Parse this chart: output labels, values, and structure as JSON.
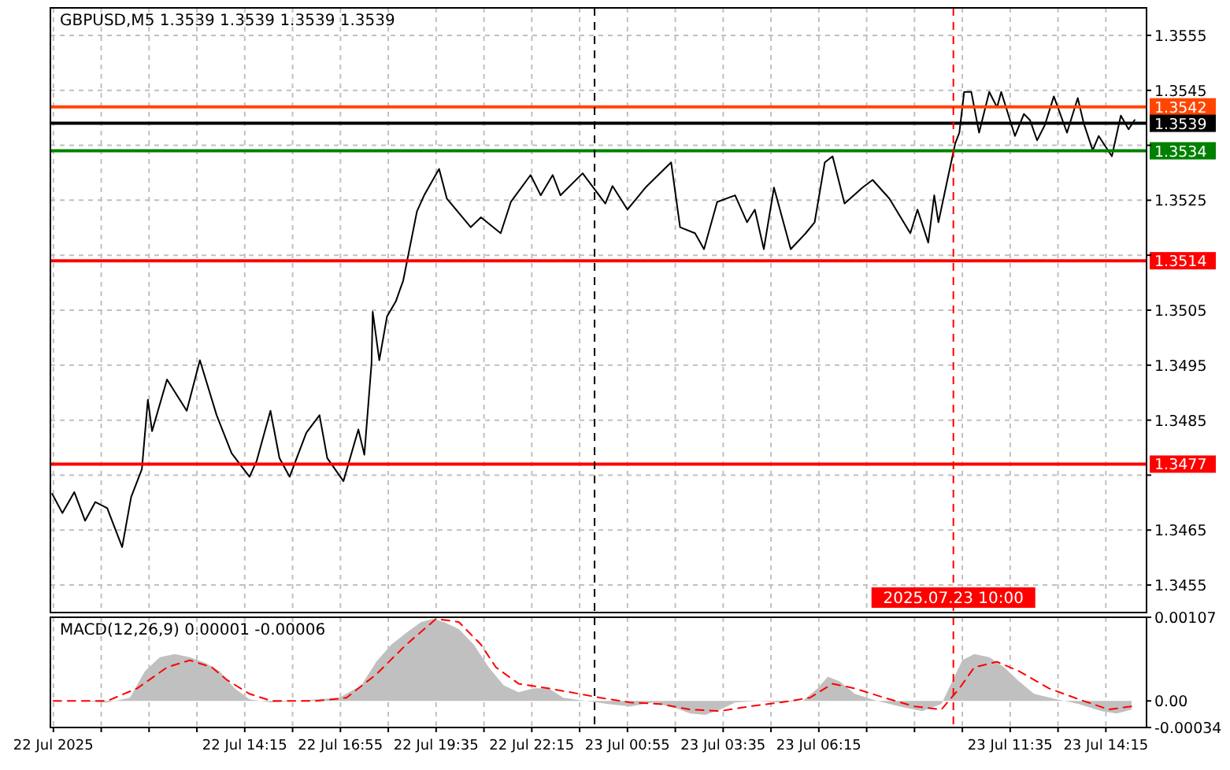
{
  "chart_data": [
    {
      "type": "line",
      "title": "GBPUSD,M5  1.3539 1.3539 1.3539 1.3539",
      "xlim": [
        "2025-07-22T08:50",
        "2025-07-23T15:23"
      ],
      "ylim": [
        1.345,
        1.356
      ],
      "xticks": [
        {
          "value": "2025-07-22T08:55",
          "label": null
        },
        {
          "value": "2025-07-22T10:15",
          "label": null
        },
        {
          "value": "2025-07-22T11:35",
          "label": null
        },
        {
          "value": "2025-07-22T12:55",
          "label": null
        },
        {
          "value": "2025-07-22T14:15",
          "label": null
        },
        {
          "value": "2025-07-22T15:35",
          "label": null
        },
        {
          "value": "2025-07-22T16:55",
          "label": null
        },
        {
          "value": "2025-07-22T18:15",
          "label": null
        },
        {
          "value": "2025-07-22T19:35",
          "label": null
        },
        {
          "value": "2025-07-22T20:55",
          "label": null
        },
        {
          "value": "2025-07-22T22:15",
          "label": null
        },
        {
          "value": "2025-07-22T23:35",
          "label": null
        },
        {
          "value": "2025-07-23T00:55",
          "label": null
        },
        {
          "value": "2025-07-23T02:15",
          "label": null
        },
        {
          "value": "2025-07-23T03:35",
          "label": null
        },
        {
          "value": "2025-07-23T04:55",
          "label": null
        },
        {
          "value": "2025-07-23T06:15",
          "label": null
        },
        {
          "value": "2025-07-23T07:35",
          "label": null
        },
        {
          "value": "2025-07-23T08:55",
          "label": null
        },
        {
          "value": "2025-07-23T10:15",
          "label": null
        },
        {
          "value": "2025-07-23T11:35",
          "label": null
        },
        {
          "value": "2025-07-23T12:55",
          "label": null
        },
        {
          "value": "2025-07-23T14:15",
          "label": null
        }
      ],
      "yticks": [
        1.3455,
        1.3465,
        {
          "value": 1.3475,
          "label": null
        },
        1.3485,
        1.3495,
        1.3505,
        {
          "value": 1.3515,
          "label": null
        },
        1.3525,
        {
          "value": 1.3535,
          "label": null
        },
        1.3545,
        1.3555
      ],
      "tick_labels": "y",
      "grid": true,
      "marker": "none",
      "ref_lines": [
        {
          "axis": "y",
          "value": 1.3542,
          "label": "1.3542",
          "color": "#ff4500"
        },
        {
          "axis": "y",
          "value": 1.3539,
          "label": "1.3539",
          "color": "#000000"
        },
        {
          "axis": "y",
          "value": 1.3534,
          "label": "1.3534",
          "color": "#008000"
        },
        {
          "axis": "y",
          "value": 1.3514,
          "label": "1.3514",
          "color": "#ff0000"
        },
        {
          "axis": "y",
          "value": 1.3477,
          "label": "1.3477",
          "color": "#ff0000"
        },
        {
          "axis": "x",
          "value": "2025-07-23T00:00",
          "label": null,
          "color": "#000000",
          "line_style": "dashed"
        },
        {
          "axis": "x",
          "value": "2025-07-23T10:00",
          "label": "2025.07.23 10:00",
          "color": "#ff0000",
          "line_style": "dashed"
        }
      ],
      "series": [
        {
          "color": "#000000",
          "x": [
            "2025-07-22T08:53",
            "2025-07-22T09:10",
            "2025-07-22T09:30",
            "2025-07-22T09:48",
            "2025-07-22T10:05",
            "2025-07-22T10:25",
            "2025-07-22T10:50",
            "2025-07-22T11:05",
            "2025-07-22T11:23",
            "2025-07-22T11:33",
            "2025-07-22T11:40",
            "2025-07-22T12:05",
            "2025-07-22T12:38",
            "2025-07-22T13:00",
            "2025-07-22T13:28",
            "2025-07-22T13:53",
            "2025-07-22T14:23",
            "2025-07-22T14:35",
            "2025-07-22T14:58",
            "2025-07-22T15:13",
            "2025-07-22T15:30",
            "2025-07-22T15:58",
            "2025-07-22T16:20",
            "2025-07-22T16:33",
            "2025-07-22T17:00",
            "2025-07-22T17:25",
            "2025-07-22T17:35",
            "2025-07-22T17:47",
            "2025-07-22T17:49",
            "2025-07-22T18:00",
            "2025-07-22T18:13",
            "2025-07-22T18:28",
            "2025-07-22T18:40",
            "2025-07-22T19:03",
            "2025-07-22T19:15",
            "2025-07-22T19:40",
            "2025-07-22T19:53",
            "2025-07-22T20:33",
            "2025-07-22T20:50",
            "2025-07-22T21:23",
            "2025-07-22T21:40",
            "2025-07-22T22:13",
            "2025-07-22T22:30",
            "2025-07-22T22:50",
            "2025-07-22T23:03",
            "2025-07-22T23:40",
            "2025-07-23T00:18",
            "2025-07-23T00:30",
            "2025-07-23T00:55",
            "2025-07-23T01:25",
            "2025-07-23T02:08",
            "2025-07-23T02:23",
            "2025-07-23T02:48",
            "2025-07-23T03:03",
            "2025-07-23T03:25",
            "2025-07-23T03:55",
            "2025-07-23T04:15",
            "2025-07-23T04:28",
            "2025-07-23T04:43",
            "2025-07-23T05:00",
            "2025-07-23T05:28",
            "2025-07-23T05:53",
            "2025-07-23T06:08",
            "2025-07-23T06:25",
            "2025-07-23T06:38",
            "2025-07-23T06:58",
            "2025-07-23T07:28",
            "2025-07-23T07:45",
            "2025-07-23T08:13",
            "2025-07-23T08:48",
            "2025-07-23T09:00",
            "2025-07-23T09:18",
            "2025-07-23T09:28",
            "2025-07-23T09:35",
            "2025-07-23T09:50",
            "2025-07-23T10:03",
            "2025-07-23T10:10",
            "2025-07-23T10:18",
            "2025-07-23T10:30",
            "2025-07-23T10:43",
            "2025-07-23T11:00",
            "2025-07-23T11:13",
            "2025-07-23T11:20",
            "2025-07-23T11:43",
            "2025-07-23T11:58",
            "2025-07-23T12:08",
            "2025-07-23T12:20",
            "2025-07-23T12:33",
            "2025-07-23T12:48",
            "2025-07-23T13:10",
            "2025-07-23T13:28",
            "2025-07-23T13:38",
            "2025-07-23T13:53",
            "2025-07-23T14:03",
            "2025-07-23T14:25",
            "2025-07-23T14:40",
            "2025-07-23T14:53",
            "2025-07-23T15:03"
          ],
          "values": [
            1.34716,
            1.34681,
            1.34719,
            1.34667,
            1.34701,
            1.3469,
            1.34619,
            1.3471,
            1.34761,
            1.34887,
            1.3483,
            1.34924,
            1.34867,
            1.34959,
            1.34859,
            1.3479,
            1.34747,
            1.34776,
            1.34867,
            1.34781,
            1.34747,
            1.34827,
            1.34859,
            1.34781,
            1.34739,
            1.34833,
            1.34787,
            1.34953,
            1.35047,
            1.34959,
            1.35039,
            1.35067,
            1.35104,
            1.3523,
            1.35259,
            1.35307,
            1.35253,
            1.35201,
            1.35219,
            1.3519,
            1.35247,
            1.35296,
            1.35259,
            1.35296,
            1.35259,
            1.35299,
            1.35244,
            1.35276,
            1.35233,
            1.35273,
            1.35319,
            1.35201,
            1.3519,
            1.35161,
            1.35247,
            1.35259,
            1.3521,
            1.35233,
            1.35161,
            1.35273,
            1.35161,
            1.3519,
            1.3521,
            1.35319,
            1.3533,
            1.35244,
            1.35273,
            1.35287,
            1.35253,
            1.3519,
            1.35233,
            1.35173,
            1.35259,
            1.3521,
            1.35287,
            1.35353,
            1.35373,
            1.35447,
            1.35447,
            1.35373,
            1.35447,
            1.35419,
            1.35447,
            1.35367,
            1.35407,
            1.35396,
            1.35359,
            1.35387,
            1.35439,
            1.35373,
            1.35436,
            1.3539,
            1.35341,
            1.35367,
            1.3533,
            1.35404,
            1.35379,
            1.35396
          ]
        }
      ]
    },
    {
      "type": "line",
      "title": "MACD(12,26,9) 0.00001 -0.00006",
      "xlim": [
        "2025-07-22T08:50",
        "2025-07-23T15:23"
      ],
      "ylim": [
        -0.00034,
        0.00107
      ],
      "xticks": [
        {
          "value": "2025-07-22T08:55",
          "label": "22 Jul 2025"
        },
        {
          "value": "2025-07-22T10:15",
          "label": null
        },
        {
          "value": "2025-07-22T11:35",
          "label": null
        },
        {
          "value": "2025-07-22T12:55",
          "label": null
        },
        {
          "value": "2025-07-22T14:15",
          "label": "22 Jul 14:15"
        },
        {
          "value": "2025-07-22T15:35",
          "label": null
        },
        {
          "value": "2025-07-22T16:55",
          "label": "22 Jul 16:55"
        },
        {
          "value": "2025-07-22T18:15",
          "label": null
        },
        {
          "value": "2025-07-22T19:35",
          "label": "22 Jul 19:35"
        },
        {
          "value": "2025-07-22T20:55",
          "label": null
        },
        {
          "value": "2025-07-22T22:15",
          "label": "22 Jul 22:15"
        },
        {
          "value": "2025-07-22T23:35",
          "label": null
        },
        {
          "value": "2025-07-23T00:55",
          "label": "23 Jul 00:55"
        },
        {
          "value": "2025-07-23T02:15",
          "label": null
        },
        {
          "value": "2025-07-23T03:35",
          "label": "23 Jul 03:35"
        },
        {
          "value": "2025-07-23T04:55",
          "label": null
        },
        {
          "value": "2025-07-23T06:15",
          "label": "23 Jul 06:15"
        },
        {
          "value": "2025-07-23T07:35",
          "label": null
        },
        {
          "value": "2025-07-23T08:55",
          "label": null
        },
        {
          "value": "2025-07-23T10:15",
          "label": null
        },
        {
          "value": "2025-07-23T11:35",
          "label": "23 Jul 11:35"
        },
        {
          "value": "2025-07-23T12:55",
          "label": null
        },
        {
          "value": "2025-07-23T14:15",
          "label": "23 Jul 14:15"
        }
      ],
      "yticks": [
        -0.00034,
        {
          "value": 0,
          "label": "0.00"
        },
        0.00107
      ],
      "grid": "x",
      "marker": "none",
      "ref_lines": [
        {
          "axis": "x",
          "value": "2025-07-23T00:00",
          "label": null,
          "color": "#000000",
          "line_style": "dashed"
        },
        {
          "axis": "x",
          "value": "2025-07-23T10:00",
          "label": null,
          "color": "#ff0000",
          "line_style": "dashed"
        }
      ],
      "series": [
        {
          "type": "area",
          "color": "#c0c0c0",
          "x": [
            "2025-07-22T08:55",
            "2025-07-22T09:35",
            "2025-07-22T10:25",
            "2025-07-22T11:03",
            "2025-07-22T11:28",
            "2025-07-22T11:53",
            "2025-07-22T12:18",
            "2025-07-22T12:43",
            "2025-07-22T13:08",
            "2025-07-22T13:33",
            "2025-07-22T13:58",
            "2025-07-22T14:23",
            "2025-07-22T15:00",
            "2025-07-22T15:38",
            "2025-07-22T16:15",
            "2025-07-22T16:53",
            "2025-07-22T17:30",
            "2025-07-22T17:55",
            "2025-07-22T18:20",
            "2025-07-22T18:45",
            "2025-07-22T19:10",
            "2025-07-22T19:30",
            "2025-07-22T19:48",
            "2025-07-22T20:13",
            "2025-07-22T20:38",
            "2025-07-22T21:03",
            "2025-07-22T21:28",
            "2025-07-22T21:53",
            "2025-07-22T22:18",
            "2025-07-22T22:43",
            "2025-07-22T23:08",
            "2025-07-22T23:45",
            "2025-07-23T00:23",
            "2025-07-23T01:00",
            "2025-07-23T01:38",
            "2025-07-23T02:15",
            "2025-07-23T02:40",
            "2025-07-23T03:05",
            "2025-07-23T03:30",
            "2025-07-23T03:55",
            "2025-07-23T04:33",
            "2025-07-23T05:10",
            "2025-07-23T05:48",
            "2025-07-23T06:13",
            "2025-07-23T06:30",
            "2025-07-23T06:50",
            "2025-07-23T07:15",
            "2025-07-23T07:53",
            "2025-07-23T08:30",
            "2025-07-23T09:08",
            "2025-07-23T09:40",
            "2025-07-23T09:58",
            "2025-07-23T10:15",
            "2025-07-23T10:35",
            "2025-07-23T11:00",
            "2025-07-23T11:25",
            "2025-07-23T11:50",
            "2025-07-23T12:15",
            "2025-07-23T12:53",
            "2025-07-23T13:30",
            "2025-07-23T14:08",
            "2025-07-23T14:33",
            "2025-07-23T14:58"
          ],
          "values": [
            0,
            0,
            -2e-05,
            4e-05,
            0.00038,
            0.00056,
            0.0006,
            0.00056,
            0.00049,
            0.00038,
            0.00016,
            2e-05,
            -2e-05,
            0,
            2e-05,
            4e-05,
            0.0002,
            0.0005,
            0.00072,
            0.00087,
            0.00101,
            0.00105,
            0.00101,
            0.00092,
            0.00072,
            0.00043,
            0.0002,
            0.00011,
            0.00016,
            0.00016,
            4e-05,
            0,
            -4e-05,
            -7e-05,
            -2e-05,
            -9e-05,
            -0.00016,
            -0.00018,
            -0.00011,
            -2e-05,
            0,
            -2e-05,
            0,
            0.00016,
            0.00031,
            0.00025,
            9e-05,
            0,
            -7e-05,
            -0.00013,
            -4e-05,
            0.00025,
            0.00052,
            0.0006,
            0.00056,
            0.00043,
            0.00025,
            9e-05,
            2e-05,
            -4e-05,
            -0.00013,
            -0.00016,
            -0.00011
          ]
        },
        {
          "color": "#ff0000",
          "line_style": "dashed",
          "x": [
            "2025-07-22T08:55",
            "2025-07-22T10:25",
            "2025-07-22T11:15",
            "2025-07-22T12:05",
            "2025-07-22T12:43",
            "2025-07-22T13:20",
            "2025-07-22T13:45",
            "2025-07-22T14:23",
            "2025-07-22T15:00",
            "2025-07-22T16:15",
            "2025-07-22T17:05",
            "2025-07-22T17:55",
            "2025-07-22T18:45",
            "2025-07-22T19:35",
            "2025-07-22T20:13",
            "2025-07-22T20:50",
            "2025-07-22T21:15",
            "2025-07-22T21:53",
            "2025-07-22T22:43",
            "2025-07-22T23:20",
            "2025-07-23T00:10",
            "2025-07-23T01:00",
            "2025-07-23T01:50",
            "2025-07-23T02:40",
            "2025-07-23T03:30",
            "2025-07-23T04:20",
            "2025-07-23T05:10",
            "2025-07-23T06:00",
            "2025-07-23T06:38",
            "2025-07-23T07:15",
            "2025-07-23T08:05",
            "2025-07-23T08:55",
            "2025-07-23T09:40",
            "2025-07-23T10:10",
            "2025-07-23T10:35",
            "2025-07-23T11:13",
            "2025-07-23T11:50",
            "2025-07-23T12:40",
            "2025-07-23T13:30",
            "2025-07-23T14:20",
            "2025-07-23T14:58"
          ],
          "values": [
            0,
            0,
            0.00016,
            0.00043,
            0.00052,
            0.00043,
            0.00027,
            9e-05,
            0,
            0,
            4e-05,
            0.00034,
            0.00072,
            0.00105,
            0.00101,
            0.00072,
            0.00043,
            0.00022,
            0.00016,
            0.00011,
            4e-05,
            -2e-05,
            -4e-05,
            -0.00011,
            -0.00013,
            -7e-05,
            -2e-05,
            4e-05,
            0.00022,
            0.00016,
            4e-05,
            -7e-05,
            -0.00011,
            0.00016,
            0.00043,
            0.0005,
            0.00038,
            0.00016,
            2e-05,
            -0.00011,
            -7e-05
          ]
        }
      ]
    }
  ]
}
